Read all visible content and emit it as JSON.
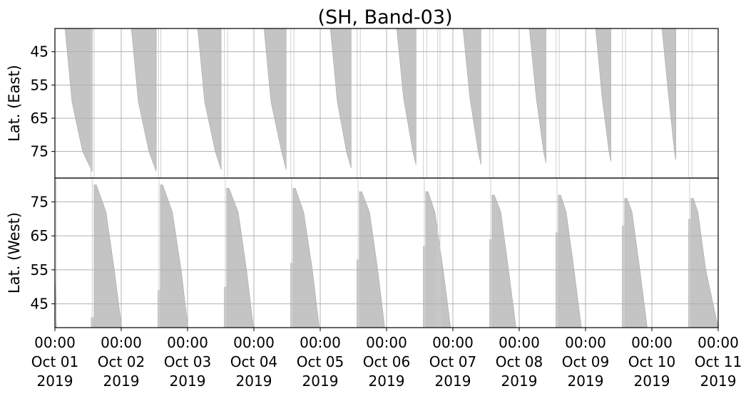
{
  "title": "(SH, Band-03)",
  "colors": {
    "fill": "#c4c4c4",
    "grid": "#b0b0b0",
    "axis": "#000000"
  },
  "x_axis": {
    "ticks": [
      {
        "time": "00:00",
        "date": "Oct 01",
        "year": "2019"
      },
      {
        "time": "00:00",
        "date": "Oct 02",
        "year": "2019"
      },
      {
        "time": "00:00",
        "date": "Oct 03",
        "year": "2019"
      },
      {
        "time": "00:00",
        "date": "Oct 04",
        "year": "2019"
      },
      {
        "time": "00:00",
        "date": "Oct 05",
        "year": "2019"
      },
      {
        "time": "00:00",
        "date": "Oct 06",
        "year": "2019"
      },
      {
        "time": "00:00",
        "date": "Oct 07",
        "year": "2019"
      },
      {
        "time": "00:00",
        "date": "Oct 08",
        "year": "2019"
      },
      {
        "time": "00:00",
        "date": "Oct 09",
        "year": "2019"
      },
      {
        "time": "00:00",
        "date": "Oct 10",
        "year": "2019"
      },
      {
        "time": "00:00",
        "date": "Oct 11",
        "year": "2019"
      }
    ]
  },
  "chart_data": [
    {
      "type": "area",
      "panel": "top",
      "ylabel": "Lat. (East)",
      "ylim": [
        38,
        83
      ],
      "y_inverted": true,
      "yticks": [
        45,
        55,
        65,
        75
      ],
      "x_range": [
        "2019-10-01T00:00",
        "2019-10-11T00:00"
      ],
      "grid": true,
      "series": [
        {
          "x": [
            "2019-10-01T03:40",
            "2019-10-01T06:10",
            "2019-10-01T10:00",
            "2019-10-01T13:30"
          ],
          "y": [
            38,
            60,
            75,
            81
          ]
        },
        {
          "x": [
            "2019-10-02T03:40",
            "2019-10-02T06:10",
            "2019-10-02T10:00",
            "2019-10-02T12:40"
          ],
          "y": [
            38,
            60,
            75,
            81
          ]
        },
        {
          "x": [
            "2019-10-03T03:40",
            "2019-10-03T06:10",
            "2019-10-03T10:00",
            "2019-10-03T12:10"
          ],
          "y": [
            38,
            60,
            75,
            80.5
          ]
        },
        {
          "x": [
            "2019-10-04T03:40",
            "2019-10-04T06:10",
            "2019-10-04T10:00",
            "2019-10-04T11:40"
          ],
          "y": [
            38,
            60,
            75,
            80.5
          ]
        },
        {
          "x": [
            "2019-10-05T03:40",
            "2019-10-05T06:10",
            "2019-10-05T09:30",
            "2019-10-05T11:10"
          ],
          "y": [
            38,
            60,
            75,
            80
          ]
        },
        {
          "x": [
            "2019-10-06T03:40",
            "2019-10-06T06:10",
            "2019-10-06T09:30",
            "2019-10-06T10:40"
          ],
          "y": [
            38,
            59,
            75,
            79
          ]
        },
        {
          "x": [
            "2019-10-07T03:40",
            "2019-10-07T06:10",
            "2019-10-07T09:10",
            "2019-10-07T10:10"
          ],
          "y": [
            38,
            59,
            75,
            79
          ]
        },
        {
          "x": [
            "2019-10-08T03:40",
            "2019-10-08T06:10",
            "2019-10-08T08:50",
            "2019-10-08T09:40"
          ],
          "y": [
            38,
            59,
            75,
            78.5
          ]
        },
        {
          "x": [
            "2019-10-09T03:40",
            "2019-10-09T06:00",
            "2019-10-09T08:30",
            "2019-10-09T09:10"
          ],
          "y": [
            38,
            59,
            75,
            78
          ]
        },
        {
          "x": [
            "2019-10-10T03:40",
            "2019-10-10T06:00",
            "2019-10-10T08:10",
            "2019-10-10T08:40"
          ],
          "y": [
            38,
            58,
            75,
            77.5
          ]
        }
      ],
      "scan_lines": [
        "2019-10-01T13:00",
        "2019-10-01T14:10",
        "2019-10-02T13:30",
        "2019-10-02T14:20",
        "2019-10-03T13:20",
        "2019-10-03T14:30",
        "2019-10-04T13:20",
        "2019-10-04T14:30",
        "2019-10-05T13:20",
        "2019-10-05T14:30",
        "2019-10-06T13:20",
        "2019-10-06T14:30",
        "2019-10-07T13:20",
        "2019-10-07T14:30",
        "2019-10-08T13:20",
        "2019-10-08T14:30",
        "2019-10-09T13:20",
        "2019-10-09T14:30",
        "2019-10-10T13:20",
        "2019-10-10T14:30",
        "2019-10-06T18:30",
        "2019-10-06T19:20"
      ]
    },
    {
      "type": "area",
      "panel": "bottom",
      "ylabel": "Lat. (West)",
      "ylim": [
        38,
        82
      ],
      "yticks": [
        45,
        55,
        65,
        75
      ],
      "x_range": [
        "2019-10-01T00:00",
        "2019-10-11T00:00"
      ],
      "grid": true,
      "series": [
        {
          "x": [
            "2019-10-01T00:00",
            "2019-10-01T00:40"
          ],
          "y": [
            54,
            38
          ]
        },
        {
          "x": [
            "2019-10-01T14:10",
            "2019-10-01T15:00",
            "2019-10-01T18:30",
            "2019-10-01T21:30",
            "2019-10-02T00:10"
          ],
          "y": [
            80,
            80,
            72,
            55,
            38
          ]
        },
        {
          "x": [
            "2019-10-02T14:10",
            "2019-10-02T15:00",
            "2019-10-02T18:30",
            "2019-10-02T21:40",
            "2019-10-03T00:10"
          ],
          "y": [
            80,
            80,
            72,
            55,
            38
          ]
        },
        {
          "x": [
            "2019-10-03T14:10",
            "2019-10-03T15:00",
            "2019-10-03T18:20",
            "2019-10-03T21:20",
            "2019-10-03T23:50"
          ],
          "y": [
            79,
            79,
            72,
            55,
            38
          ]
        },
        {
          "x": [
            "2019-10-04T14:10",
            "2019-10-04T15:00",
            "2019-10-04T18:00",
            "2019-10-04T21:10",
            "2019-10-04T23:40"
          ],
          "y": [
            79,
            79,
            72,
            55,
            38
          ]
        },
        {
          "x": [
            "2019-10-05T14:10",
            "2019-10-05T15:00",
            "2019-10-05T17:50",
            "2019-10-05T20:50",
            "2019-10-05T23:20"
          ],
          "y": [
            78,
            78,
            72,
            55,
            38
          ]
        },
        {
          "x": [
            "2019-10-06T14:10",
            "2019-10-06T15:00",
            "2019-10-06T17:30",
            "2019-10-06T20:30",
            "2019-10-06T23:10"
          ],
          "y": [
            78,
            78,
            72,
            55,
            38
          ]
        },
        {
          "x": [
            "2019-10-07T14:10",
            "2019-10-07T15:00",
            "2019-10-07T17:20",
            "2019-10-07T20:10",
            "2019-10-07T22:50"
          ],
          "y": [
            77,
            77,
            72,
            55,
            38
          ]
        },
        {
          "x": [
            "2019-10-08T14:10",
            "2019-10-08T15:00",
            "2019-10-08T17:00",
            "2019-10-08T19:50",
            "2019-10-08T22:30"
          ],
          "y": [
            77,
            77,
            72,
            55,
            38
          ]
        },
        {
          "x": [
            "2019-10-09T14:10",
            "2019-10-09T15:00",
            "2019-10-09T16:50",
            "2019-10-09T19:40",
            "2019-10-09T22:20"
          ],
          "y": [
            76,
            76,
            72,
            55,
            38
          ]
        },
        {
          "x": [
            "2019-10-10T14:10",
            "2019-10-10T15:00",
            "2019-10-10T16:40",
            "2019-10-10T19:30",
            "2019-10-10T24:00"
          ],
          "y": [
            76,
            76,
            72,
            55,
            38
          ]
        }
      ],
      "side_bands": [
        {
          "x": [
            "2019-10-01T13:00",
            "2019-10-01T14:00"
          ],
          "y_top": 41
        },
        {
          "x": [
            "2019-10-02T13:10",
            "2019-10-02T14:00"
          ],
          "y_top": 49
        },
        {
          "x": [
            "2019-10-03T13:10",
            "2019-10-03T14:00"
          ],
          "y_top": 50
        },
        {
          "x": [
            "2019-10-04T13:10",
            "2019-10-04T14:00"
          ],
          "y_top": 57
        },
        {
          "x": [
            "2019-10-05T13:10",
            "2019-10-05T14:00"
          ],
          "y_top": 58
        },
        {
          "x": [
            "2019-10-06T13:10",
            "2019-10-06T14:00"
          ],
          "y_top": 62
        },
        {
          "x": [
            "2019-10-07T13:10",
            "2019-10-07T14:00"
          ],
          "y_top": 64
        },
        {
          "x": [
            "2019-10-08T13:10",
            "2019-10-08T14:00"
          ],
          "y_top": 66
        },
        {
          "x": [
            "2019-10-09T13:10",
            "2019-10-09T14:00"
          ],
          "y_top": 68
        },
        {
          "x": [
            "2019-10-10T13:10",
            "2019-10-10T14:00"
          ],
          "y_top": 70
        }
      ],
      "scan_lines": [
        "2019-10-01T00:30",
        "2019-10-01T13:30",
        "2019-10-02T13:40",
        "2019-10-03T13:40",
        "2019-10-04T13:40",
        "2019-10-05T13:40",
        "2019-10-06T13:40",
        "2019-10-06T18:30",
        "2019-10-06T19:20",
        "2019-10-07T13:40",
        "2019-10-08T13:40",
        "2019-10-09T13:40",
        "2019-10-10T13:40"
      ]
    }
  ]
}
